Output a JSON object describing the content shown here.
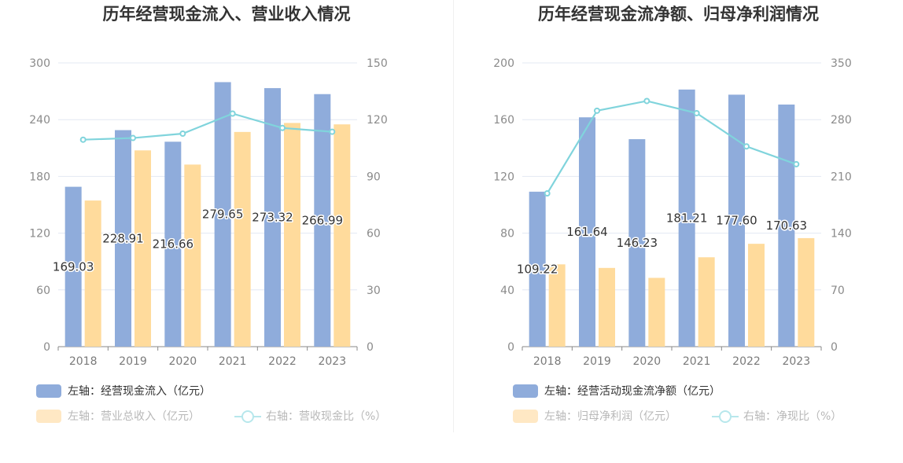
{
  "colors": {
    "bar_primary": "#8facdb",
    "bar_secondary": "#ffdb9c",
    "line": "#80d4dc",
    "grid": "#e3e8f3",
    "axis": "#888888"
  },
  "chart_data": [
    {
      "type": "bar",
      "title": "历年经营现金流入、营业收入情况",
      "categories": [
        "2018",
        "2019",
        "2020",
        "2021",
        "2022",
        "2023"
      ],
      "left_axis": {
        "ylim": [
          0,
          300
        ],
        "ticks": [
          "0",
          "60",
          "120",
          "180",
          "240",
          "300"
        ]
      },
      "right_axis": {
        "ylim": [
          0,
          150
        ],
        "ticks": [
          "0",
          "30",
          "60",
          "90",
          "120",
          "150"
        ]
      },
      "series": [
        {
          "name": "左轴：经营现金流入（亿元）",
          "axis": "left",
          "type": "bar",
          "values": [
            169.03,
            228.91,
            216.66,
            279.65,
            273.32,
            266.99
          ],
          "labels": [
            "169.03",
            "228.91",
            "216.66",
            "279.65",
            "273.32",
            "266.99"
          ]
        },
        {
          "name": "左轴：营业总收入（亿元）",
          "axis": "left",
          "type": "bar",
          "values": [
            154.5,
            207.5,
            192.5,
            227.0,
            236.5,
            235.0
          ]
        },
        {
          "name": "右轴：营收现金比（%）",
          "axis": "right",
          "type": "line",
          "values": [
            109.4,
            110.3,
            112.6,
            123.2,
            115.6,
            113.6
          ]
        }
      ]
    },
    {
      "type": "bar",
      "title": "历年经营现金流净额、归母净利润情况",
      "categories": [
        "2018",
        "2019",
        "2020",
        "2021",
        "2022",
        "2023"
      ],
      "left_axis": {
        "ylim": [
          0,
          200
        ],
        "ticks": [
          "0",
          "40",
          "80",
          "120",
          "160",
          "200"
        ]
      },
      "right_axis": {
        "ylim": [
          0,
          350
        ],
        "ticks": [
          "0",
          "70",
          "140",
          "210",
          "280",
          "350"
        ]
      },
      "series": [
        {
          "name": "左轴：经营活动现金流净额（亿元）",
          "axis": "left",
          "type": "bar",
          "values": [
            109.22,
            161.64,
            146.23,
            181.21,
            177.6,
            170.63
          ],
          "labels": [
            "109.22",
            "161.64",
            "146.23",
            "181.21",
            "177.60",
            "170.63"
          ]
        },
        {
          "name": "左轴：归母净利润（亿元）",
          "axis": "left",
          "type": "bar",
          "values": [
            58.0,
            55.5,
            48.5,
            63.0,
            72.5,
            76.5
          ]
        },
        {
          "name": "右轴：净现比（%）",
          "axis": "right",
          "type": "line",
          "values": [
            189.0,
            291.0,
            303.0,
            288.0,
            247.0,
            225.0
          ]
        }
      ]
    }
  ]
}
